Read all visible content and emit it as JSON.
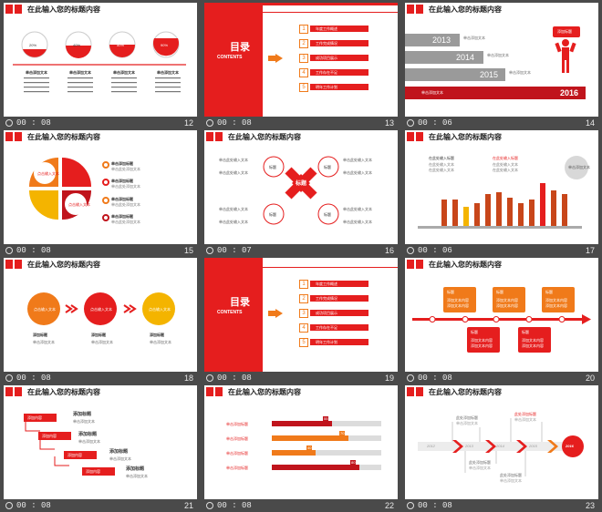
{
  "slide_title": "在此输入您的标题内容",
  "toc": {
    "heading": "目录",
    "subheading": "CONTENTS",
    "items": [
      "1",
      "2",
      "3",
      "4",
      "5"
    ],
    "labels": [
      "年度工作概述",
      "工作完成情况",
      "成功项目展示",
      "工作存在不足",
      "明年工作计划"
    ]
  },
  "s12": {
    "percents": [
      "20%",
      "40%",
      "50%",
      "90%"
    ],
    "caption": "单击添加文本",
    "body": "单击添加文本"
  },
  "s14": {
    "years": [
      "2013",
      "2014",
      "2015",
      "2016"
    ],
    "badge": "添加标题",
    "line": "单击添加文本"
  },
  "s15": {
    "center": "点击输入文本",
    "items": [
      "单击添加标题",
      "单击添加标题",
      "单击添加标题",
      "单击添加标题"
    ],
    "line": "单击此处添加文本"
  },
  "s16": {
    "center": "标题",
    "node": "标题",
    "text": "单击此处输入文本"
  },
  "s17": {
    "left": "在此处输入标题",
    "right": "在此处输入标题",
    "bubble": "单击添加文本",
    "line": "在此处输入文本"
  },
  "s18": {
    "circles": [
      "点击输入文本",
      "点击输入文本",
      "点击输入文本"
    ],
    "caption": "添加标题",
    "line": "单击添加文本"
  },
  "s20": {
    "card_title": "标题",
    "card_line": "添加文本内容"
  },
  "s21": {
    "tags": [
      "添加内容",
      "添加内容",
      "添加内容",
      "添加内容"
    ],
    "heading": "添加标题",
    "line": "单击添加文本"
  },
  "s22": {
    "label": "单击添加标题",
    "pcts": [
      "55",
      "70",
      "40",
      "80"
    ]
  },
  "s23": {
    "years": [
      "2012",
      "2013",
      "2014",
      "2015",
      "2016"
    ],
    "text": "此处添加标题",
    "line": "单击添加文本"
  },
  "footers": [
    {
      "time": "00 : 08",
      "num": "12"
    },
    {
      "time": "00 : 08",
      "num": "13"
    },
    {
      "time": "00 : 06",
      "num": "14"
    },
    {
      "time": "00 : 08",
      "num": "15"
    },
    {
      "time": "00 : 07",
      "num": "16"
    },
    {
      "time": "00 : 06",
      "num": "17"
    },
    {
      "time": "00 : 08",
      "num": "18"
    },
    {
      "time": "00 : 08",
      "num": "19"
    },
    {
      "time": "00 : 08",
      "num": "20"
    },
    {
      "time": "00 : 08",
      "num": "21"
    },
    {
      "time": "00 : 08",
      "num": "22"
    },
    {
      "time": "00 : 08",
      "num": "23"
    }
  ],
  "colors": {
    "red": "#e51e1e",
    "orange": "#f07a1a",
    "yellow": "#f4b400",
    "gray": "#aaaaaa"
  }
}
